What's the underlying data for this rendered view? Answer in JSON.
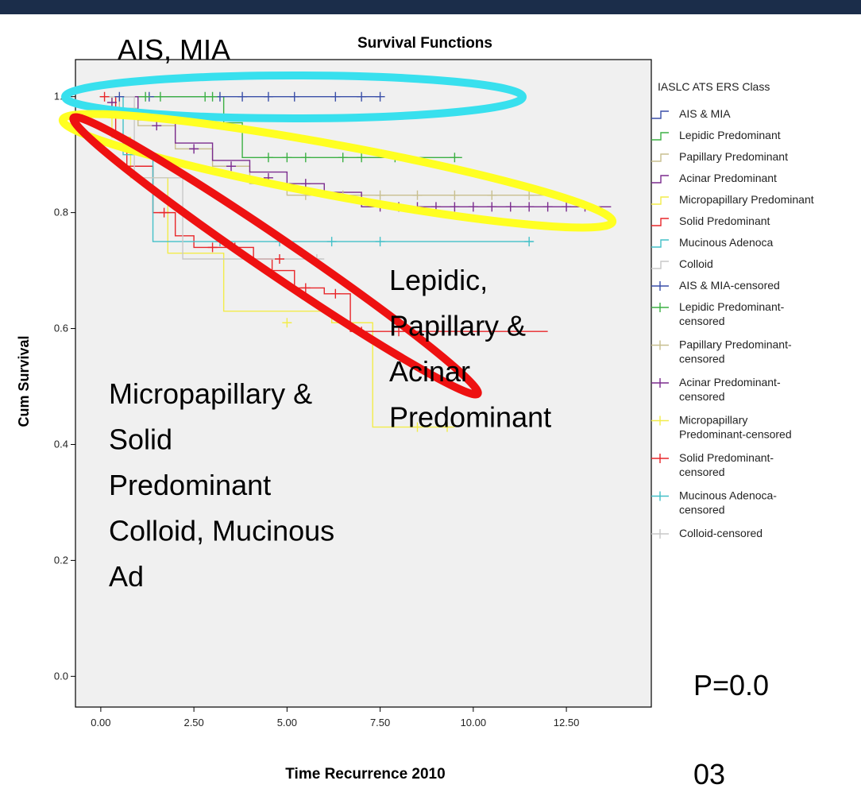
{
  "chart_data": {
    "type": "step",
    "title": "Survival Functions",
    "xlabel": "Time Recurrence 2010",
    "ylabel": "Cum Survival",
    "xlim": [
      -0.68,
      14.78
    ],
    "ylim": [
      -0.053,
      1.064
    ],
    "xticks": [
      {
        "value": 0,
        "label": "0.00"
      },
      {
        "value": 2.5,
        "label": "2.50"
      },
      {
        "value": 5,
        "label": "5.00"
      },
      {
        "value": 7.5,
        "label": "7.50"
      },
      {
        "value": 10,
        "label": "10.00"
      },
      {
        "value": 12.5,
        "label": "12.50"
      }
    ],
    "yticks": [
      {
        "value": 0,
        "label": "0.0"
      },
      {
        "value": 0.2,
        "label": "0.2"
      },
      {
        "value": 0.4,
        "label": "0.4"
      },
      {
        "value": 0.6,
        "label": "0.6"
      },
      {
        "value": 0.8,
        "label": "0.8"
      },
      {
        "value": 1,
        "label": "1.0"
      }
    ],
    "grid": false,
    "legend_title": "IASLC ATS ERS Class",
    "legend": "right",
    "series": [
      {
        "name": "AIS & MIA",
        "color": "#3a4fa8",
        "style": "step",
        "x": [
          0,
          7.5
        ],
        "values": [
          1,
          1
        ]
      },
      {
        "name": "Lepidic Predominant",
        "color": "#3cb044",
        "style": "step",
        "x": [
          0,
          3.3,
          3.8,
          9.7
        ],
        "values": [
          1,
          0.955,
          0.895,
          0.895
        ]
      },
      {
        "name": "Papillary Predominant",
        "color": "#c8bf8f",
        "style": "step",
        "x": [
          0,
          0.5,
          1,
          2,
          3,
          4,
          5,
          12.2
        ],
        "values": [
          1,
          0.98,
          0.95,
          0.91,
          0.88,
          0.85,
          0.83,
          0.83
        ]
      },
      {
        "name": "Acinar Predominant",
        "color": "#7b2c8e",
        "style": "step",
        "x": [
          0,
          1,
          2,
          3,
          4,
          5,
          6,
          7,
          13.7
        ],
        "values": [
          1,
          0.96,
          0.92,
          0.89,
          0.87,
          0.85,
          0.835,
          0.81,
          0.81
        ]
      },
      {
        "name": "Micropapillary Predominant",
        "color": "#f2ec4a",
        "style": "step",
        "x": [
          0,
          0.3,
          0.8,
          1.8,
          3.3,
          6.2,
          7.3,
          9.5
        ],
        "values": [
          1,
          0.93,
          0.86,
          0.73,
          0.63,
          0.61,
          0.43,
          0.43
        ]
      },
      {
        "name": "Solid Predominant",
        "color": "#e8262a",
        "style": "step",
        "x": [
          0,
          0.4,
          0.7,
          1.4,
          2.0,
          2.5,
          4.1,
          4.6,
          5.2,
          6.0,
          6.7,
          12.0
        ],
        "values": [
          1,
          0.93,
          0.88,
          0.8,
          0.76,
          0.74,
          0.72,
          0.7,
          0.67,
          0.66,
          0.595,
          0.595
        ]
      },
      {
        "name": "Mucinous Adenoca",
        "color": "#43c0c8",
        "style": "step",
        "x": [
          0,
          0.6,
          1.4,
          11.6
        ],
        "values": [
          1,
          0.9,
          0.75,
          0.75
        ]
      },
      {
        "name": "Colloid",
        "color": "#c8c8c8",
        "style": "step",
        "x": [
          0,
          0.9,
          2.2,
          6.0
        ],
        "values": [
          1,
          0.86,
          0.72,
          0.72
        ]
      },
      {
        "name": "AIS & MIA-censored",
        "color": "#3a4fa8",
        "style": "marker",
        "x": [
          0.5,
          1.3,
          3.2,
          3.8,
          4.5,
          5.2,
          6.3,
          7.0,
          7.5
        ],
        "values": [
          1,
          1,
          1,
          1,
          1,
          1,
          1,
          1,
          1
        ]
      },
      {
        "name": "Lepidic Predominant-censored",
        "color": "#3cb044",
        "style": "marker",
        "x": [
          1.2,
          1.6,
          2.8,
          3.0,
          4.5,
          5.0,
          5.5,
          6.5,
          7.0,
          7.9,
          9.5
        ],
        "values": [
          1,
          1,
          1,
          1,
          0.895,
          0.895,
          0.895,
          0.895,
          0.895,
          0.895,
          0.895
        ]
      },
      {
        "name": "Papillary Predominant-censored",
        "color": "#c8bf8f",
        "style": "marker",
        "x": [
          5.5,
          6.5,
          7.5,
          8.5,
          9.5,
          10.5,
          11.5
        ],
        "values": [
          0.83,
          0.83,
          0.83,
          0.83,
          0.83,
          0.83,
          0.83
        ]
      },
      {
        "name": "Acinar Predominant-censored",
        "color": "#7b2c8e",
        "style": "marker",
        "x": [
          0.3,
          1.5,
          2.5,
          3.5,
          4.5,
          5.5,
          7.5,
          8,
          8.5,
          9,
          9.5,
          10,
          10.5,
          11,
          11.5,
          12,
          12.5,
          13
        ],
        "values": [
          0.99,
          0.95,
          0.91,
          0.88,
          0.86,
          0.85,
          0.81,
          0.81,
          0.81,
          0.81,
          0.81,
          0.81,
          0.81,
          0.81,
          0.81,
          0.81,
          0.81,
          0.81
        ]
      },
      {
        "name": "Micropapillary Predominant-censored",
        "color": "#f2ec4a",
        "style": "marker",
        "x": [
          5.0,
          8.5,
          9.3
        ],
        "values": [
          0.61,
          0.43,
          0.43
        ]
      },
      {
        "name": "Solid Predominant-censored",
        "color": "#e8262a",
        "style": "marker",
        "x": [
          0.1,
          1.7,
          3.0,
          3.6,
          4.8,
          5.5,
          6.3,
          7.0,
          8.0
        ],
        "values": [
          1,
          0.8,
          0.74,
          0.74,
          0.72,
          0.67,
          0.66,
          0.595,
          0.595
        ]
      },
      {
        "name": "Mucinous Adenoca-censored",
        "color": "#43c0c8",
        "style": "marker",
        "x": [
          3.2,
          4.8,
          6.2,
          7.5,
          11.5
        ],
        "values": [
          0.75,
          0.75,
          0.75,
          0.75,
          0.75
        ]
      },
      {
        "name": "Colloid-censored",
        "color": "#c8c8c8",
        "style": "marker",
        "x": [
          5.8
        ],
        "values": [
          0.72
        ]
      }
    ],
    "annotations": [
      {
        "lines": [
          "AIS, MIA"
        ]
      },
      {
        "lines": [
          "Lepidic,",
          "Papillary &",
          "Acinar",
          "Predominant"
        ]
      },
      {
        "lines": [
          "Micropapillary &",
          "Solid",
          "Predominant",
          "Colloid, Mucinous",
          "Ad"
        ]
      },
      {
        "lines": [
          "P=0.0",
          "03"
        ]
      }
    ]
  }
}
